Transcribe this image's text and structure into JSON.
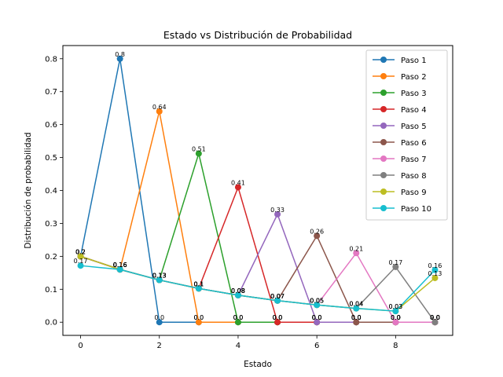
{
  "chart_data": {
    "type": "line",
    "title": "Estado vs Distribución de Probabilidad",
    "xlabel": "Estado",
    "ylabel": "Distribución de probabilidad",
    "xlim": [
      -0.45,
      9.45
    ],
    "ylim": [
      -0.04,
      0.84
    ],
    "xticks": [
      0,
      2,
      4,
      6,
      8
    ],
    "yticks": [
      0.0,
      0.1,
      0.2,
      0.3,
      0.4,
      0.5,
      0.6,
      0.7,
      0.8
    ],
    "ytick_labels": [
      "0.0",
      "0.1",
      "0.2",
      "0.3",
      "0.4",
      "0.5",
      "0.6",
      "0.7",
      "0.8"
    ],
    "grid": false,
    "legend_position": "top-right",
    "x": [
      0,
      1,
      2,
      3,
      4,
      5,
      6,
      7,
      8,
      9
    ],
    "series": [
      {
        "name": "Paso 1",
        "color": "#1f77b4",
        "values": [
          0.2,
          0.8,
          0.0,
          0.0,
          0.0,
          0.0,
          0.0,
          0.0,
          0.0,
          0.0
        ],
        "labels": [
          "0.2",
          "0.8",
          "0.0",
          "0.0",
          "0.0",
          "0.0",
          "0.0",
          "0.0",
          "0.0",
          "0.0"
        ]
      },
      {
        "name": "Paso 2",
        "color": "#ff7f0e",
        "values": [
          0.2,
          0.16,
          0.64,
          0.0,
          0.0,
          0.0,
          0.0,
          0.0,
          0.0,
          0.0
        ],
        "labels": [
          "0.2",
          "0.16",
          "0.64",
          "0.0",
          "0.0",
          "0.0",
          "0.0",
          "0.0",
          "0.0",
          "0.0"
        ]
      },
      {
        "name": "Paso 3",
        "color": "#2ca02c",
        "values": [
          0.2,
          0.16,
          0.128,
          0.512,
          0.0,
          0.0,
          0.0,
          0.0,
          0.0,
          0.0
        ],
        "labels": [
          "0.2",
          "0.16",
          "0.13",
          "0.51",
          "0.0",
          "0.0",
          "0.0",
          "0.0",
          "0.0",
          "0.0"
        ]
      },
      {
        "name": "Paso 4",
        "color": "#d62728",
        "values": [
          0.2,
          0.16,
          0.128,
          0.1024,
          0.4096,
          0.0,
          0.0,
          0.0,
          0.0,
          0.0
        ],
        "labels": [
          "0.2",
          "0.16",
          "0.13",
          "0.1",
          "0.41",
          "0.0",
          "0.0",
          "0.0",
          "0.0",
          "0.0"
        ]
      },
      {
        "name": "Paso 5",
        "color": "#9467bd",
        "values": [
          0.2,
          0.16,
          0.128,
          0.1024,
          0.0819,
          0.3277,
          0.0,
          0.0,
          0.0,
          0.0
        ],
        "labels": [
          "0.2",
          "0.16",
          "0.13",
          "0.1",
          "0.08",
          "0.33",
          "0.0",
          "0.0",
          "0.0",
          "0.0"
        ]
      },
      {
        "name": "Paso 6",
        "color": "#8c564b",
        "values": [
          0.2,
          0.16,
          0.128,
          0.1024,
          0.0819,
          0.0655,
          0.2621,
          0.0,
          0.0,
          0.0
        ],
        "labels": [
          "0.2",
          "0.16",
          "0.13",
          "0.1",
          "0.08",
          "0.07",
          "0.26",
          "0.0",
          "0.0",
          "0.0"
        ]
      },
      {
        "name": "Paso 7",
        "color": "#e377c2",
        "values": [
          0.2,
          0.16,
          0.128,
          0.1024,
          0.0819,
          0.0655,
          0.0524,
          0.2097,
          0.0,
          0.0
        ],
        "labels": [
          "0.2",
          "0.16",
          "0.13",
          "0.1",
          "0.08",
          "0.07",
          "0.05",
          "0.21",
          "0.0",
          "0.0"
        ]
      },
      {
        "name": "Paso 8",
        "color": "#7f7f7f",
        "values": [
          0.2,
          0.16,
          0.128,
          0.1024,
          0.0819,
          0.0655,
          0.0524,
          0.0419,
          0.1678,
          0.0
        ],
        "labels": [
          "0.2",
          "0.16",
          "0.13",
          "0.1",
          "0.08",
          "0.07",
          "0.05",
          "0.04",
          "0.17",
          "0.0"
        ]
      },
      {
        "name": "Paso 9",
        "color": "#bcbd22",
        "values": [
          0.2,
          0.16,
          0.128,
          0.1024,
          0.0819,
          0.0655,
          0.0524,
          0.0419,
          0.0336,
          0.1342
        ],
        "labels": [
          "0.2",
          "0.16",
          "0.13",
          "0.1",
          "0.08",
          "0.07",
          "0.05",
          "0.04",
          "0.03",
          "0.13"
        ]
      },
      {
        "name": "Paso 10",
        "color": "#17becf",
        "values": [
          0.1718,
          0.16,
          0.128,
          0.1024,
          0.0819,
          0.0655,
          0.0524,
          0.0419,
          0.0336,
          0.1585
        ],
        "labels": [
          "0.17",
          "0.16",
          "0.13",
          "0.1",
          "0.08",
          "0.07",
          "0.05",
          "0.04",
          "0.03",
          "0.16"
        ]
      }
    ]
  }
}
